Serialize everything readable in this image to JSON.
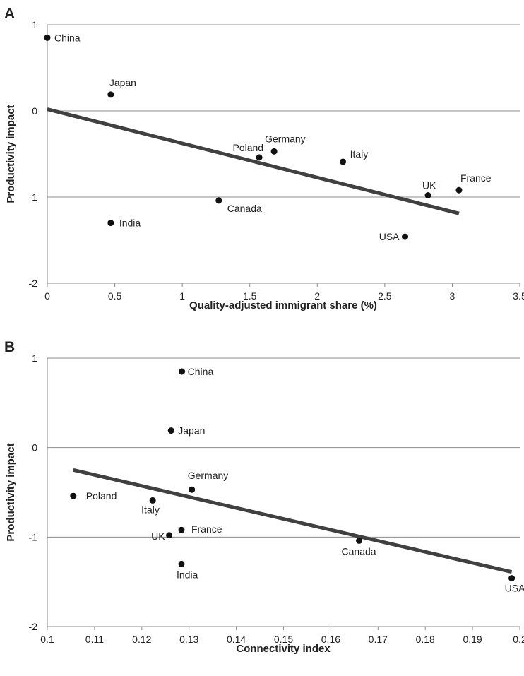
{
  "chart_data": [
    {
      "panel": "A",
      "type": "scatter",
      "xlabel": "Quality-adjusted immigrant share (%)",
      "ylabel": "Productivity impact",
      "xlim": [
        0,
        3.5
      ],
      "ylim": [
        -2,
        1
      ],
      "x_ticks": [
        "0",
        "0.5",
        "1",
        "1.5",
        "2",
        "2.5",
        "3",
        "3.5"
      ],
      "y_ticks": [
        "1",
        "0",
        "-1",
        "-2"
      ],
      "grid": "horizontal",
      "points": [
        {
          "label": "China",
          "x": 0.0,
          "y": 0.85
        },
        {
          "label": "Japan",
          "x": 0.47,
          "y": 0.19
        },
        {
          "label": "India",
          "x": 0.47,
          "y": -1.3
        },
        {
          "label": "Canada",
          "x": 1.27,
          "y": -1.04
        },
        {
          "label": "Poland",
          "x": 1.57,
          "y": -0.54
        },
        {
          "label": "Germany",
          "x": 1.68,
          "y": -0.47
        },
        {
          "label": "Italy",
          "x": 2.19,
          "y": -0.59
        },
        {
          "label": "USA",
          "x": 2.65,
          "y": -1.46
        },
        {
          "label": "UK",
          "x": 2.82,
          "y": -0.98
        },
        {
          "label": "France",
          "x": 3.05,
          "y": -0.92
        }
      ],
      "trendline": {
        "x": [
          0,
          3.05
        ],
        "y": [
          0.02,
          -1.19
        ]
      }
    },
    {
      "panel": "B",
      "type": "scatter",
      "xlabel": "Connectivity index",
      "ylabel": "Productivity impact",
      "xlim": [
        0.1,
        0.2
      ],
      "ylim": [
        -2,
        1
      ],
      "x_ticks": [
        "0.1",
        "0.11",
        "0.12",
        "0.13",
        "0.14",
        "0.15",
        "0.16",
        "0.17",
        "0.18",
        "0.19",
        "0.2"
      ],
      "y_ticks": [
        "1",
        "0",
        "-1",
        "-2"
      ],
      "grid": "horizontal",
      "points": [
        {
          "label": "China",
          "x": 0.1285,
          "y": 0.85
        },
        {
          "label": "Japan",
          "x": 0.1262,
          "y": 0.19
        },
        {
          "label": "Germany",
          "x": 0.1306,
          "y": -0.47
        },
        {
          "label": "Poland",
          "x": 0.1055,
          "y": -0.54
        },
        {
          "label": "Italy",
          "x": 0.1223,
          "y": -0.59
        },
        {
          "label": "France",
          "x": 0.1284,
          "y": -0.92
        },
        {
          "label": "UK",
          "x": 0.1258,
          "y": -0.98
        },
        {
          "label": "India",
          "x": 0.1284,
          "y": -1.3
        },
        {
          "label": "Canada",
          "x": 0.166,
          "y": -1.04
        },
        {
          "label": "USA",
          "x": 0.1983,
          "y": -1.46
        }
      ],
      "trendline": {
        "x": [
          0.1055,
          0.1983
        ],
        "y": [
          -0.25,
          -1.39
        ]
      }
    }
  ]
}
